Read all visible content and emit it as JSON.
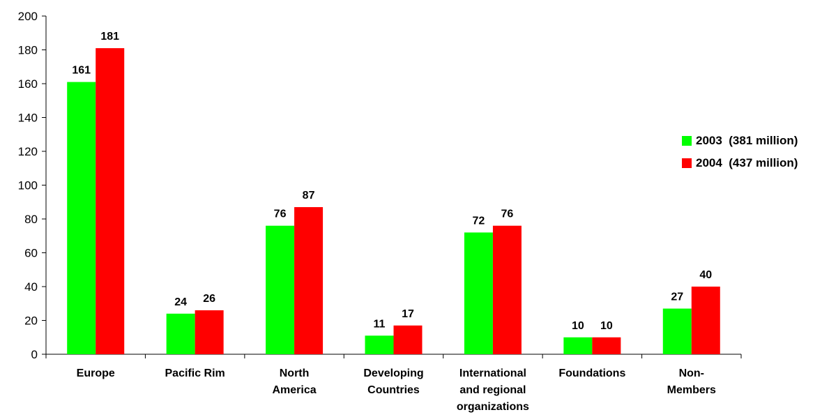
{
  "chart_data": {
    "type": "bar",
    "categories": [
      [
        "Europe"
      ],
      [
        "Pacific Rim"
      ],
      [
        "North",
        "America"
      ],
      [
        "Developing",
        "Countries"
      ],
      [
        "International",
        "and regional",
        "organizations"
      ],
      [
        "Foundations"
      ],
      [
        "Non-",
        "Members"
      ]
    ],
    "series": [
      {
        "name": "2003",
        "legend_label": "2003  (381 million)",
        "color": "#00ff00",
        "values": [
          161,
          24,
          76,
          11,
          72,
          10,
          27
        ]
      },
      {
        "name": "2004",
        "legend_label": "2004  (437 million)",
        "color": "#ff0000",
        "values": [
          181,
          26,
          87,
          17,
          76,
          10,
          40
        ]
      }
    ],
    "ylim": [
      0,
      200
    ],
    "yticks": [
      0,
      20,
      40,
      60,
      80,
      100,
      120,
      140,
      160,
      180,
      200
    ],
    "xlabel": "",
    "ylabel": "",
    "title": "",
    "grid": false,
    "legend_position": "right"
  }
}
